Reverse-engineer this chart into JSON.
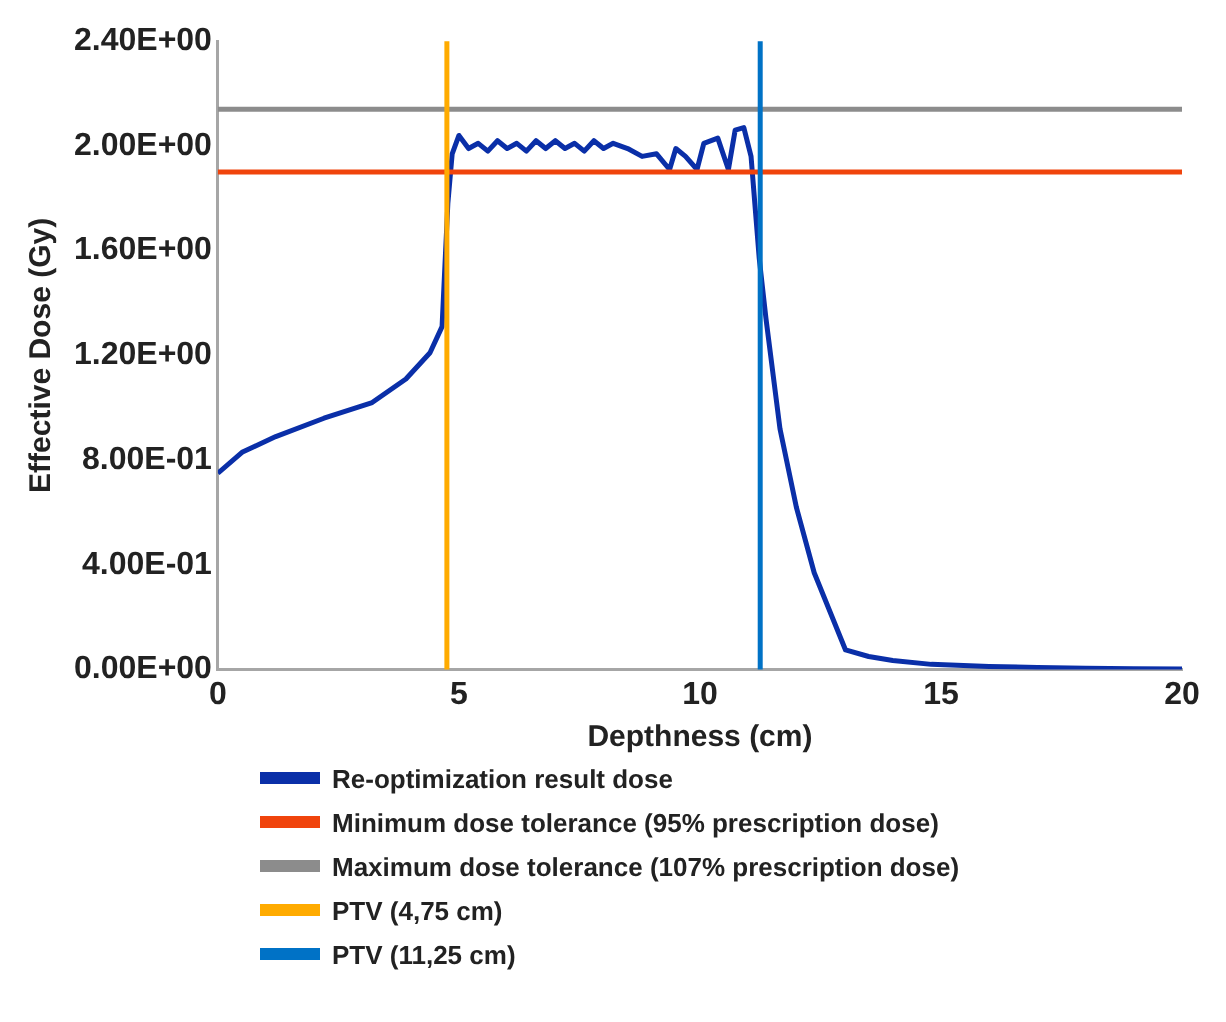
{
  "chart_data": {
    "type": "line",
    "xlabel": "Depthness (cm)",
    "ylabel": "Effective Dose (Gy)",
    "xlim": [
      0,
      20
    ],
    "xticks": [
      0,
      5,
      10,
      15,
      20
    ],
    "ylim": [
      0,
      2.4
    ],
    "yticks": [
      {
        "value": 0,
        "label": "0.00E+00"
      },
      {
        "value": 0.4,
        "label": "4.00E-01"
      },
      {
        "value": 0.8,
        "label": "8.00E-01"
      },
      {
        "value": 1.2,
        "label": "1.20E+00"
      },
      {
        "value": 1.6,
        "label": "1.60E+00"
      },
      {
        "value": 2.0,
        "label": "2.00E+00"
      },
      {
        "value": 2.4,
        "label": "2.40E+00"
      }
    ],
    "grid": false,
    "legend": "bottom",
    "marker": "none",
    "line_style": "solid",
    "series": [
      {
        "name": "Re-optimization result dose",
        "color": "#0a2fa8",
        "x": [
          0,
          0.5,
          1.2,
          2.2,
          3.2,
          3.9,
          4.4,
          4.65,
          4.77,
          4.86,
          5.0,
          5.2,
          5.4,
          5.6,
          5.8,
          6.0,
          6.2,
          6.4,
          6.6,
          6.8,
          7.0,
          7.2,
          7.4,
          7.6,
          7.8,
          8.0,
          8.2,
          8.5,
          8.8,
          9.1,
          9.37,
          9.5,
          9.7,
          9.94,
          10.08,
          10.37,
          10.59,
          10.73,
          10.91,
          11.06,
          11.23,
          11.37,
          11.66,
          12.0,
          12.37,
          13.02,
          13.5,
          14.0,
          14.8,
          16,
          17,
          18,
          19,
          20
        ],
        "values": [
          0.75,
          0.83,
          0.89,
          0.96,
          1.02,
          1.11,
          1.21,
          1.31,
          1.78,
          1.97,
          2.04,
          1.99,
          2.01,
          1.98,
          2.02,
          1.99,
          2.01,
          1.98,
          2.02,
          1.99,
          2.02,
          1.99,
          2.01,
          1.98,
          2.02,
          1.99,
          2.01,
          1.99,
          1.96,
          1.97,
          1.91,
          1.99,
          1.96,
          1.91,
          2.01,
          2.03,
          1.91,
          2.06,
          2.07,
          1.96,
          1.57,
          1.34,
          0.92,
          0.62,
          0.37,
          0.075,
          0.05,
          0.035,
          0.02,
          0.012,
          0.008,
          0.005,
          0.003,
          0.002
        ]
      }
    ],
    "ref_lines": [
      {
        "axis": "y",
        "value": 1.9,
        "label": "Minimum dose tolerance (95% prescription dose)",
        "color": "#f0440c"
      },
      {
        "axis": "y",
        "value": 2.14,
        "label": "Maximum dose tolerance (107% prescription dose)",
        "color": "#8c8c8c"
      },
      {
        "axis": "x",
        "value": 4.75,
        "label": "PTV (4,75 cm)",
        "color": "#ffab00"
      },
      {
        "axis": "x",
        "value": 11.25,
        "label": "PTV (11,25 cm)",
        "color": "#0072c6"
      }
    ]
  }
}
